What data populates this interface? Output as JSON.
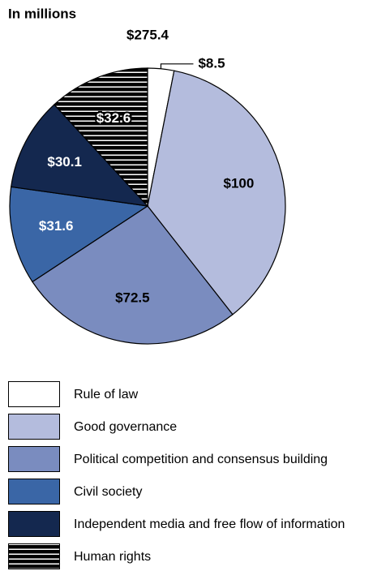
{
  "chart_data": {
    "type": "pie",
    "subtitle": "In millions",
    "total": {
      "value": 275.4,
      "label": "$275.4"
    },
    "categories": [
      "Rule of law",
      "Good governance",
      "Political competition and consensus building",
      "Civil society",
      "Independent media and free flow of information",
      "Human rights"
    ],
    "values": [
      8.5,
      100,
      72.5,
      31.6,
      30.1,
      32.6
    ],
    "value_labels": [
      "$8.5",
      "$100",
      "$72.5",
      "$31.6",
      "$30.1",
      "$32.6"
    ],
    "colors": [
      "#ffffff",
      "#b4bcdd",
      "#7a8cbf",
      "#3a66a6",
      "#14284f",
      "#000000"
    ],
    "hatched": [
      5
    ]
  }
}
